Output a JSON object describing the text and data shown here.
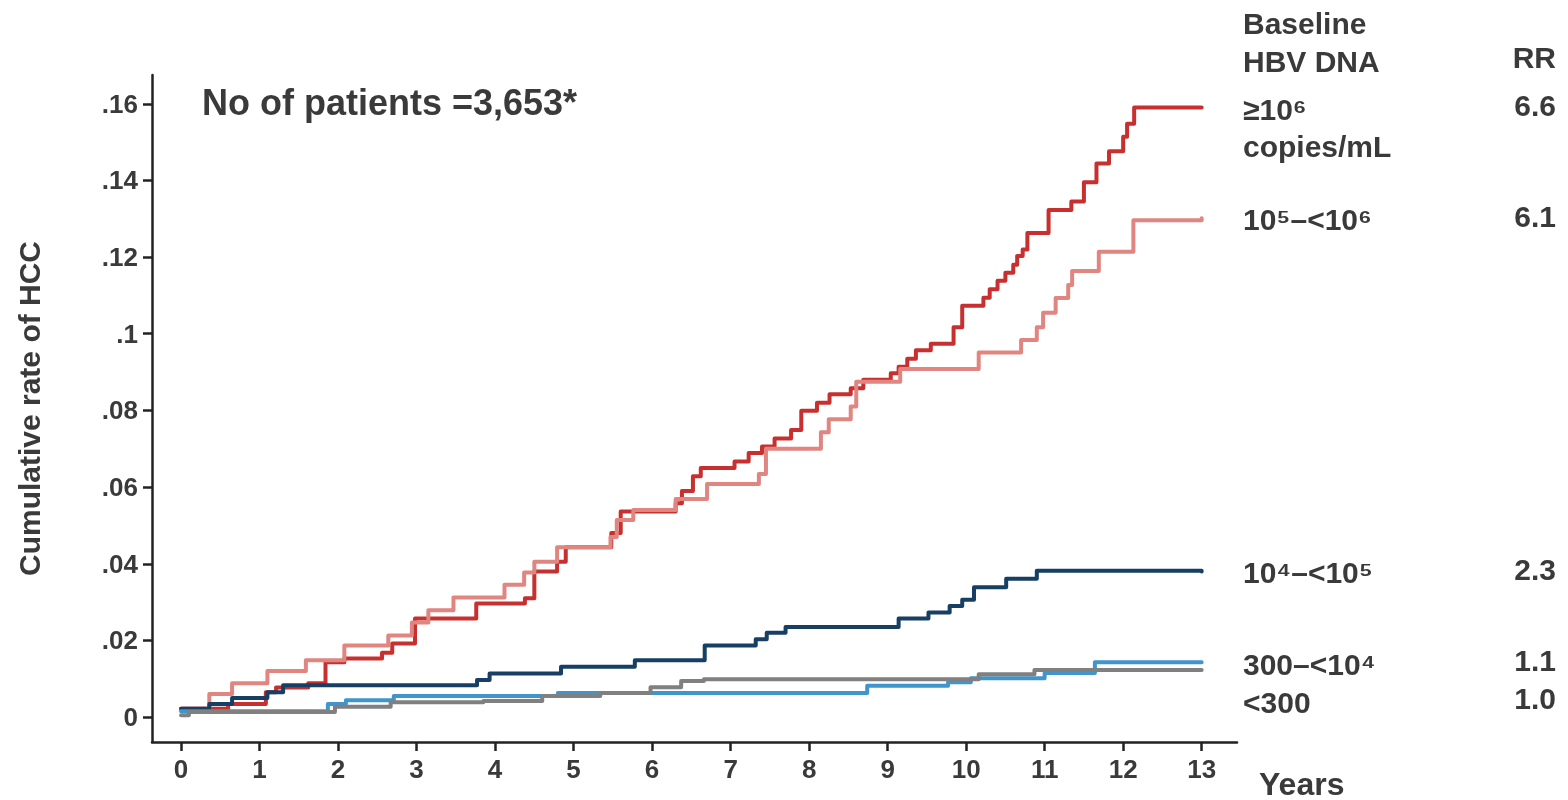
{
  "chart_data": {
    "type": "step",
    "ylabel": "Cumulative rate of HCC",
    "xlabel": "Years",
    "legend_title": "Baseline HBV DNA",
    "legend": "right",
    "grid": false,
    "xlim": [
      -0.37,
      13.45
    ],
    "xticks": [
      0,
      1,
      2,
      3,
      4,
      5,
      6,
      7,
      8,
      9,
      10,
      11,
      12,
      13
    ],
    "ylim": [
      -0.0065,
      0.1675
    ],
    "yticks": [
      0,
      {
        "value": 0.02,
        "label": ".02"
      },
      {
        "value": 0.04,
        "label": ".04"
      },
      {
        "value": 0.06,
        "label": ".06"
      },
      {
        "value": 0.08,
        "label": ".08"
      },
      {
        "value": 0.1,
        "label": ".1"
      },
      {
        "value": 0.12,
        "label": ".12"
      },
      {
        "value": 0.14,
        "label": ".14"
      },
      {
        "value": 0.16,
        "label": ".16"
      }
    ],
    "annotations": [
      "No of patients =3,653*",
      "RR",
      "6.6",
      "6.1",
      "2.3",
      "1.1",
      "1.0"
    ],
    "series": [
      {
        "name": "≥10⁶ copies/mL",
        "color": "#c8302f",
        "x": [
          0,
          0.6,
          1.08,
          1.21,
          1.62,
          1.84,
          2.08,
          2.56,
          2.69,
          2.98,
          3.76,
          4.38,
          4.5,
          4.79,
          4.9,
          5.48,
          5.6,
          6.3,
          6.38,
          6.52,
          6.62,
          7.05,
          7.23,
          7.4,
          7.56,
          7.77,
          7.9,
          8.1,
          8.26,
          8.53,
          8.69,
          9.04,
          9.14,
          9.25,
          9.36,
          9.55,
          9.84,
          9.95,
          10.22,
          10.3,
          10.4,
          10.5,
          10.6,
          10.65,
          10.72,
          10.78,
          11.05,
          11.34,
          11.5,
          11.66,
          11.82,
          12.0,
          12.05,
          12.14,
          13
        ],
        "values": [
          0.0022,
          0.0034,
          0.0065,
          0.0077,
          0.0088,
          0.0143,
          0.0153,
          0.0168,
          0.0192,
          0.0257,
          0.0296,
          0.031,
          0.038,
          0.0405,
          0.0443,
          0.048,
          0.0536,
          0.0558,
          0.059,
          0.0628,
          0.065,
          0.0667,
          0.0689,
          0.0706,
          0.0727,
          0.0749,
          0.0799,
          0.082,
          0.0842,
          0.0858,
          0.088,
          0.0897,
          0.0914,
          0.0935,
          0.0957,
          0.0974,
          0.1017,
          0.1073,
          0.1094,
          0.1116,
          0.1138,
          0.1159,
          0.118,
          0.1203,
          0.122,
          0.1263,
          0.1323,
          0.1345,
          0.1395,
          0.1444,
          0.1476,
          0.1514,
          0.1548,
          0.159,
          0.159
        ]
      },
      {
        "name": "10⁵–<10⁶",
        "color": "#e08580",
        "x": [
          0,
          0.36,
          0.65,
          1.1,
          1.59,
          2.08,
          2.64,
          2.94,
          3.15,
          3.47,
          4.12,
          4.37,
          4.5,
          4.79,
          5.47,
          5.55,
          5.76,
          6.3,
          6.7,
          7.36,
          7.45,
          8.15,
          8.25,
          8.53,
          8.6,
          9.16,
          10.16,
          10.7,
          10.9,
          10.98,
          11.14,
          11.3,
          11.35,
          11.69,
          12.13,
          13
        ],
        "values": [
          0.0022,
          0.006,
          0.0088,
          0.012,
          0.0148,
          0.0187,
          0.0213,
          0.0247,
          0.0279,
          0.0312,
          0.0345,
          0.0377,
          0.0405,
          0.0443,
          0.047,
          0.0514,
          0.054,
          0.0569,
          0.0608,
          0.0634,
          0.07,
          0.0743,
          0.0777,
          0.081,
          0.0875,
          0.0908,
          0.0951,
          0.0984,
          0.1017,
          0.1055,
          0.1093,
          0.1127,
          0.1164,
          0.1214,
          0.1296,
          0.1301
        ]
      },
      {
        "name": "10⁴–<10⁵",
        "color": "#163f63",
        "x": [
          0,
          0.36,
          0.65,
          1.1,
          1.3,
          3.77,
          3.93,
          4.84,
          5.78,
          6.67,
          7.32,
          7.46,
          7.7,
          9.14,
          9.52,
          9.79,
          9.95,
          10.1,
          10.51,
          10.9,
          13
        ],
        "values": [
          0.0022,
          0.0034,
          0.005,
          0.0065,
          0.0083,
          0.0097,
          0.0114,
          0.0131,
          0.0148,
          0.0187,
          0.0203,
          0.022,
          0.0235,
          0.0257,
          0.0273,
          0.029,
          0.0306,
          0.0339,
          0.0361,
          0.0382,
          0.038
        ]
      },
      {
        "name": "300–<10⁴",
        "color": "#3f95cc",
        "x": [
          0,
          1.21,
          1.87,
          2.1,
          2.71,
          4.8,
          8.74,
          9.77,
          10.06,
          11.0,
          11.64,
          13
        ],
        "values": [
          0.0015,
          0.0016,
          0.0034,
          0.0044,
          0.0055,
          0.0063,
          0.0082,
          0.0091,
          0.0101,
          0.0115,
          0.0143,
          0.0142
        ]
      },
      {
        "name": "<300",
        "color": "#808080",
        "x": [
          0,
          0.1,
          1.96,
          2.67,
          3.85,
          4.6,
          5.34,
          5.98,
          6.37,
          6.66,
          10.16,
          10.87,
          13
        ],
        "values": [
          0.0005,
          0.0013,
          0.0027,
          0.0039,
          0.0042,
          0.0055,
          0.0063,
          0.0078,
          0.0094,
          0.0099,
          0.0112,
          0.0123,
          0.0123
        ]
      }
    ]
  }
}
